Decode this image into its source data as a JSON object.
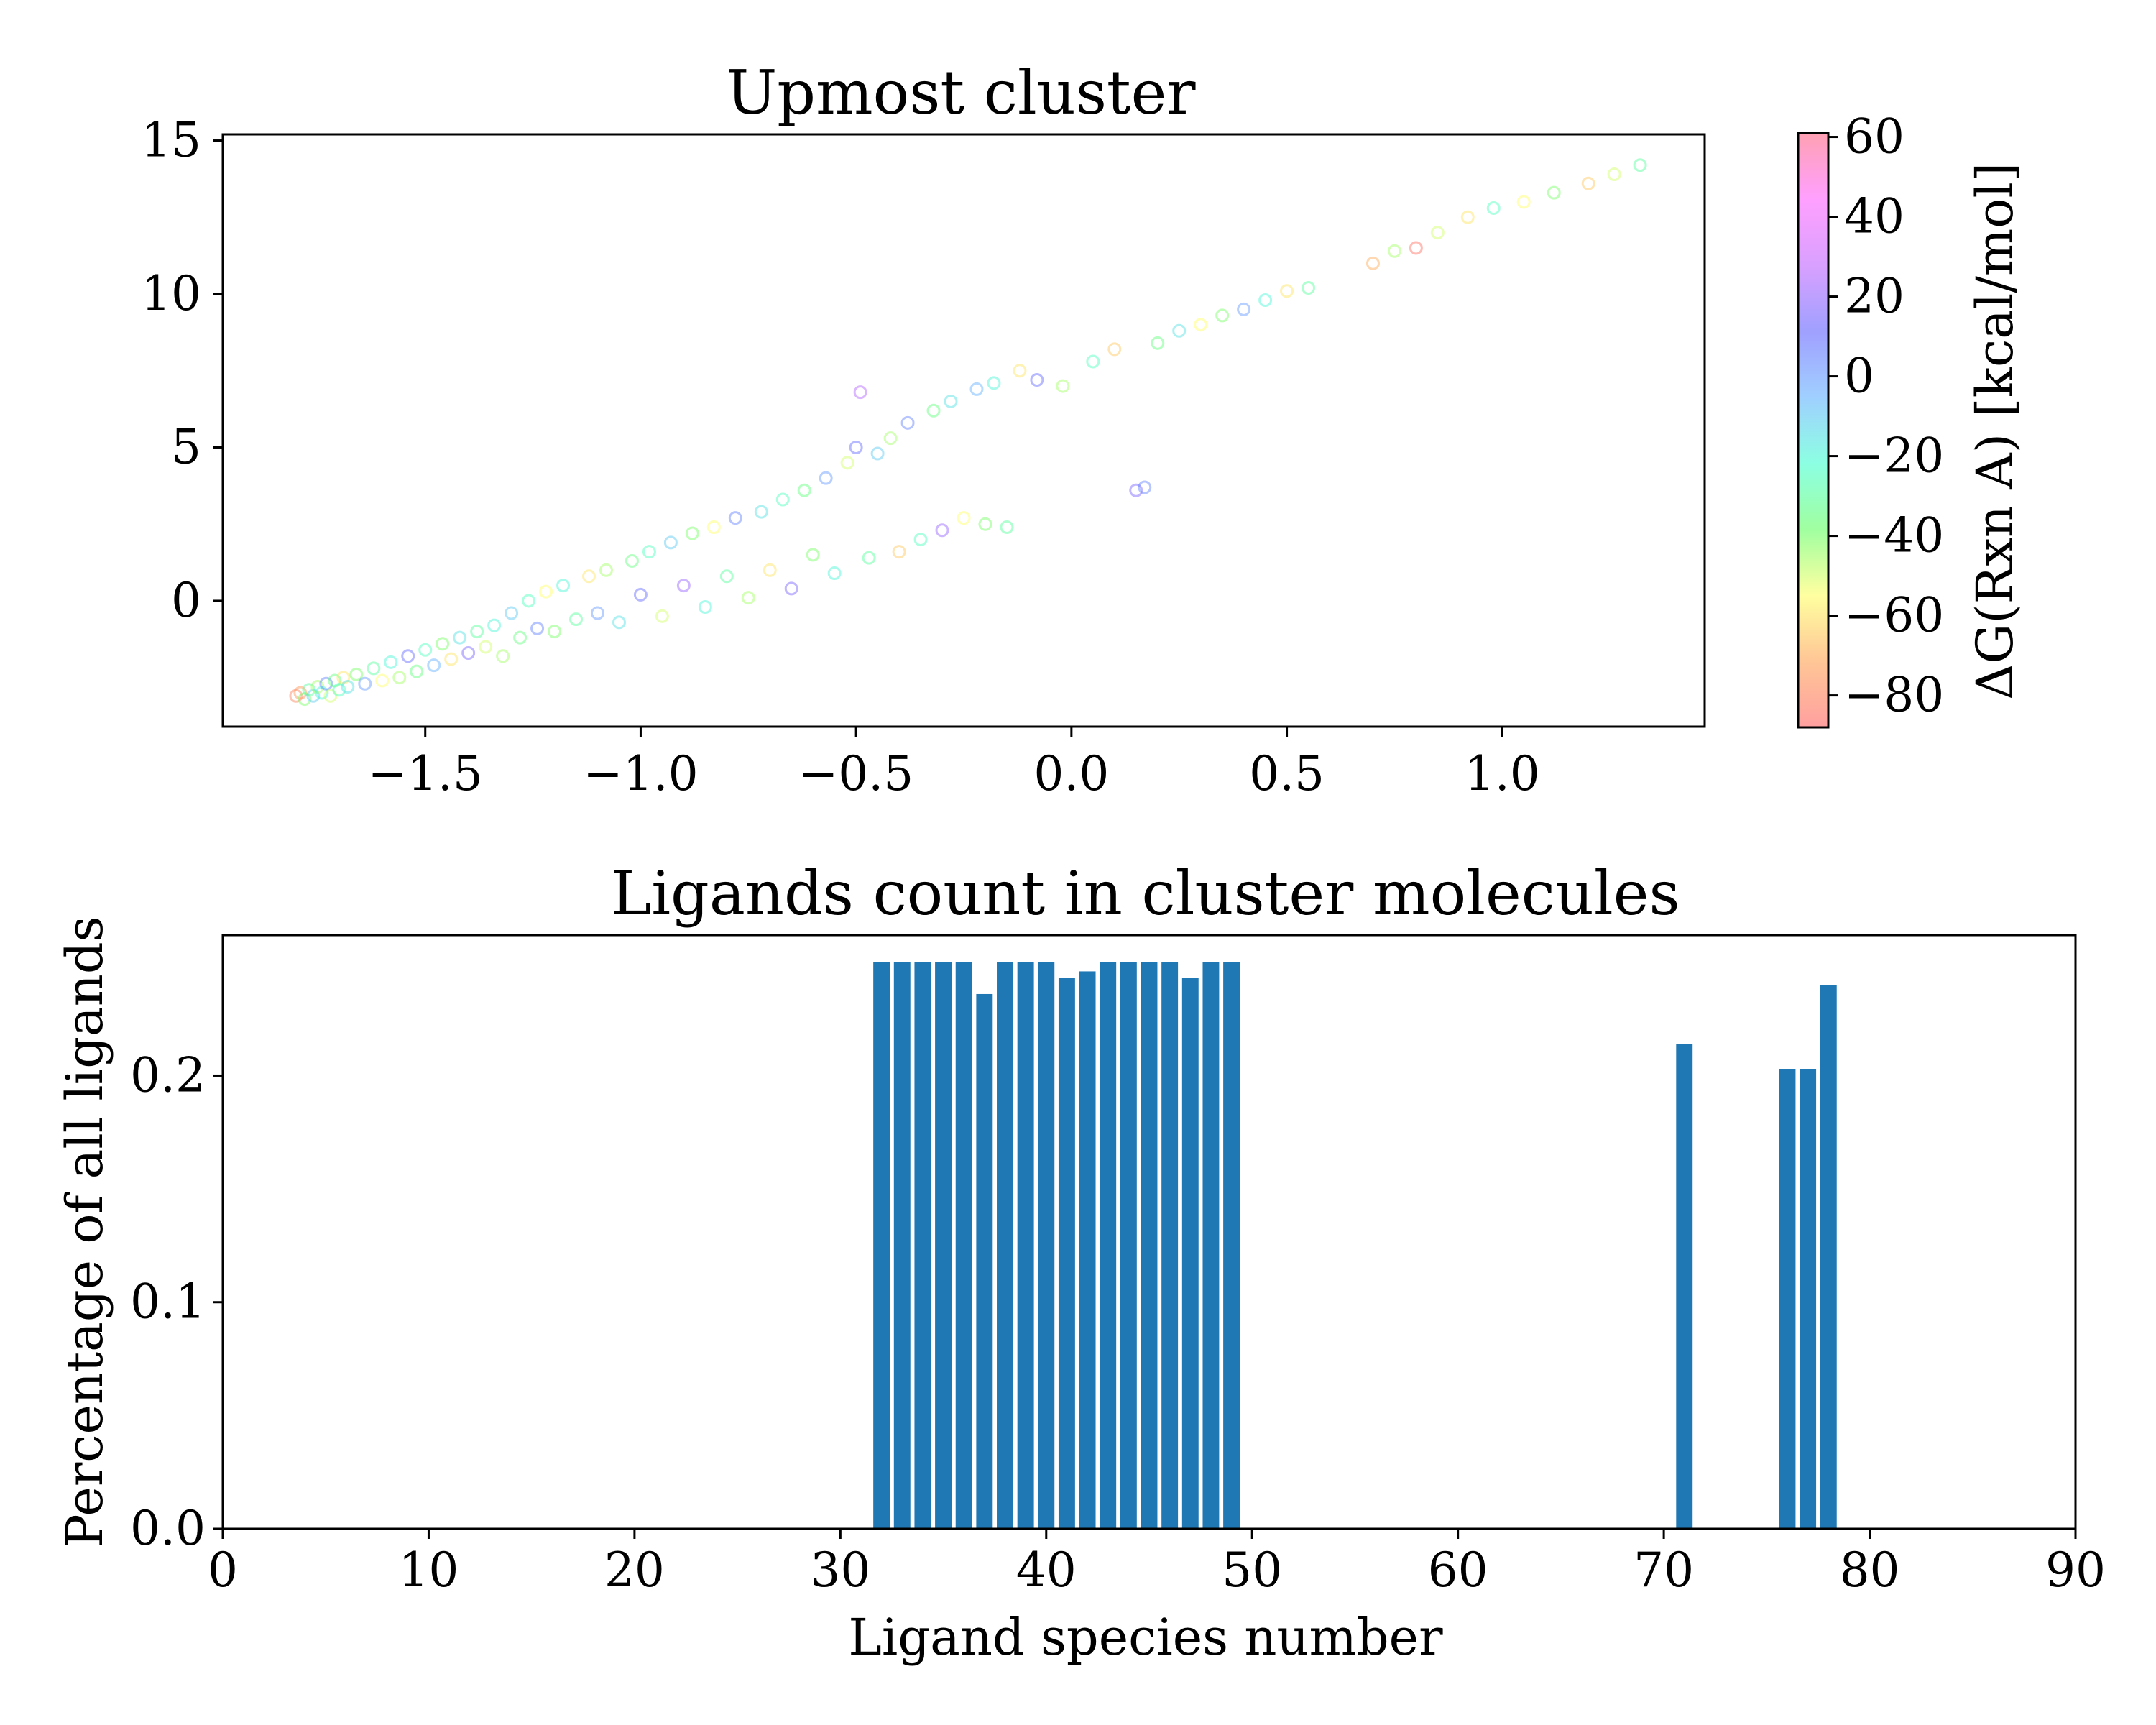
{
  "chart_data": [
    {
      "type": "scatter",
      "title": "Upmost cluster",
      "xlabel": "",
      "ylabel": "",
      "xlim": [
        -1.97,
        1.47
      ],
      "ylim": [
        -4.1,
        15.2
      ],
      "xticks": [
        -1.5,
        -1.0,
        -0.5,
        0.0,
        0.5,
        1.0
      ],
      "xtick_labels": [
        "−1.5",
        "−1.0",
        "−0.5",
        "0.0",
        "0.5",
        "1.0"
      ],
      "yticks": [
        0,
        5,
        10,
        15
      ],
      "ytick_labels": [
        "0",
        "5",
        "10",
        "15"
      ],
      "marker": "hollow circle, low opacity",
      "colorbar": {
        "label": "ΔG(Rxn A) [kcal/mol]",
        "range": [
          -88,
          61
        ],
        "ticks": [
          -80,
          -60,
          -40,
          -20,
          0,
          20,
          40,
          60
        ],
        "tick_labels": [
          "−80",
          "−60",
          "−40",
          "−20",
          "0",
          "20",
          "40",
          "60"
        ],
        "colormap": [
          "#ff6060",
          "#ffa050",
          "#ffff60",
          "#60ff60",
          "#40ffd0",
          "#60b0ff",
          "#6060ff",
          "#c060ff",
          "#ff60ff",
          "#ff6080"
        ]
      },
      "series": [
        {
          "points": [
            {
              "x": -1.8,
              "y": -3.1,
              "c": -80
            },
            {
              "x": -1.79,
              "y": -3.0,
              "c": -75
            },
            {
              "x": -1.78,
              "y": -3.2,
              "c": -40
            },
            {
              "x": -1.77,
              "y": -2.9,
              "c": -30
            },
            {
              "x": -1.76,
              "y": -3.1,
              "c": -10
            },
            {
              "x": -1.75,
              "y": -2.8,
              "c": -45
            },
            {
              "x": -1.74,
              "y": -3.0,
              "c": -20
            },
            {
              "x": -1.73,
              "y": -2.7,
              "c": 5
            },
            {
              "x": -1.72,
              "y": -3.1,
              "c": -50
            },
            {
              "x": -1.71,
              "y": -2.6,
              "c": -35
            },
            {
              "x": -1.7,
              "y": -2.9,
              "c": -25
            },
            {
              "x": -1.69,
              "y": -2.5,
              "c": -60
            },
            {
              "x": -1.68,
              "y": -2.8,
              "c": -15
            },
            {
              "x": -1.66,
              "y": -2.4,
              "c": -40
            },
            {
              "x": -1.64,
              "y": -2.7,
              "c": 0
            },
            {
              "x": -1.62,
              "y": -2.2,
              "c": -30
            },
            {
              "x": -1.6,
              "y": -2.6,
              "c": -55
            },
            {
              "x": -1.58,
              "y": -2.0,
              "c": -20
            },
            {
              "x": -1.56,
              "y": -2.5,
              "c": -45
            },
            {
              "x": -1.54,
              "y": -1.8,
              "c": 10
            },
            {
              "x": -1.52,
              "y": -2.3,
              "c": -35
            },
            {
              "x": -1.5,
              "y": -1.6,
              "c": -25
            },
            {
              "x": -1.48,
              "y": -2.1,
              "c": -5
            },
            {
              "x": -1.46,
              "y": -1.4,
              "c": -40
            },
            {
              "x": -1.44,
              "y": -1.9,
              "c": -60
            },
            {
              "x": -1.42,
              "y": -1.2,
              "c": -15
            },
            {
              "x": -1.4,
              "y": -1.7,
              "c": 15
            },
            {
              "x": -1.38,
              "y": -1.0,
              "c": -30
            },
            {
              "x": -1.36,
              "y": -1.5,
              "c": -50
            },
            {
              "x": -1.34,
              "y": -0.8,
              "c": -20
            },
            {
              "x": -1.32,
              "y": -1.8,
              "c": -45
            },
            {
              "x": -1.3,
              "y": -0.4,
              "c": -10
            },
            {
              "x": -1.28,
              "y": -1.2,
              "c": -35
            },
            {
              "x": -1.26,
              "y": 0.0,
              "c": -25
            },
            {
              "x": -1.24,
              "y": -0.9,
              "c": 5
            },
            {
              "x": -1.22,
              "y": 0.3,
              "c": -55
            },
            {
              "x": -1.2,
              "y": -1.0,
              "c": -40
            },
            {
              "x": -1.18,
              "y": 0.5,
              "c": -20
            },
            {
              "x": -1.15,
              "y": -0.6,
              "c": -30
            },
            {
              "x": -1.12,
              "y": 0.8,
              "c": -60
            },
            {
              "x": -1.1,
              "y": -0.4,
              "c": 0
            },
            {
              "x": -1.08,
              "y": 1.0,
              "c": -45
            },
            {
              "x": -1.05,
              "y": -0.7,
              "c": -15
            },
            {
              "x": -1.02,
              "y": 1.3,
              "c": -35
            },
            {
              "x": -1.0,
              "y": 0.2,
              "c": 10
            },
            {
              "x": -0.98,
              "y": 1.6,
              "c": -25
            },
            {
              "x": -0.95,
              "y": -0.5,
              "c": -50
            },
            {
              "x": -0.93,
              "y": 1.9,
              "c": -10
            },
            {
              "x": -0.9,
              "y": 0.5,
              "c": 20
            },
            {
              "x": -0.88,
              "y": 2.2,
              "c": -40
            },
            {
              "x": -0.85,
              "y": -0.2,
              "c": -20
            },
            {
              "x": -0.83,
              "y": 2.4,
              "c": -55
            },
            {
              "x": -0.8,
              "y": 0.8,
              "c": -30
            },
            {
              "x": -0.78,
              "y": 2.7,
              "c": 5
            },
            {
              "x": -0.75,
              "y": 0.1,
              "c": -45
            },
            {
              "x": -0.72,
              "y": 2.9,
              "c": -15
            },
            {
              "x": -0.7,
              "y": 1.0,
              "c": -60
            },
            {
              "x": -0.67,
              "y": 3.3,
              "c": -25
            },
            {
              "x": -0.65,
              "y": 0.4,
              "c": 15
            },
            {
              "x": -0.62,
              "y": 3.6,
              "c": -35
            },
            {
              "x": -0.6,
              "y": 1.5,
              "c": -40
            },
            {
              "x": -0.57,
              "y": 4.0,
              "c": 0
            },
            {
              "x": -0.55,
              "y": 0.9,
              "c": -20
            },
            {
              "x": -0.52,
              "y": 4.5,
              "c": -50
            },
            {
              "x": -0.5,
              "y": 5.0,
              "c": 10
            },
            {
              "x": -0.49,
              "y": 6.8,
              "c": 25
            },
            {
              "x": -0.47,
              "y": 1.4,
              "c": -30
            },
            {
              "x": -0.45,
              "y": 4.8,
              "c": -10
            },
            {
              "x": -0.42,
              "y": 5.3,
              "c": -45
            },
            {
              "x": -0.4,
              "y": 1.6,
              "c": -65
            },
            {
              "x": -0.38,
              "y": 5.8,
              "c": 5
            },
            {
              "x": -0.35,
              "y": 2.0,
              "c": -25
            },
            {
              "x": -0.32,
              "y": 6.2,
              "c": -35
            },
            {
              "x": -0.3,
              "y": 2.3,
              "c": 20
            },
            {
              "x": -0.28,
              "y": 6.5,
              "c": -15
            },
            {
              "x": -0.25,
              "y": 2.7,
              "c": -55
            },
            {
              "x": -0.22,
              "y": 6.9,
              "c": -5
            },
            {
              "x": -0.2,
              "y": 2.5,
              "c": -40
            },
            {
              "x": -0.18,
              "y": 7.1,
              "c": -20
            },
            {
              "x": -0.15,
              "y": 2.4,
              "c": -30
            },
            {
              "x": -0.12,
              "y": 7.5,
              "c": -60
            },
            {
              "x": -0.08,
              "y": 7.2,
              "c": 10
            },
            {
              "x": -0.02,
              "y": 7.0,
              "c": -45
            },
            {
              "x": 0.05,
              "y": 7.8,
              "c": -25
            },
            {
              "x": 0.1,
              "y": 8.2,
              "c": -65
            },
            {
              "x": 0.15,
              "y": 3.6,
              "c": 15
            },
            {
              "x": 0.17,
              "y": 3.7,
              "c": 5
            },
            {
              "x": 0.2,
              "y": 8.4,
              "c": -35
            },
            {
              "x": 0.25,
              "y": 8.8,
              "c": -15
            },
            {
              "x": 0.3,
              "y": 9.0,
              "c": -55
            },
            {
              "x": 0.35,
              "y": 9.3,
              "c": -40
            },
            {
              "x": 0.4,
              "y": 9.5,
              "c": 0
            },
            {
              "x": 0.45,
              "y": 9.8,
              "c": -20
            },
            {
              "x": 0.5,
              "y": 10.1,
              "c": -60
            },
            {
              "x": 0.55,
              "y": 10.2,
              "c": -30
            },
            {
              "x": 0.7,
              "y": 11.0,
              "c": -70
            },
            {
              "x": 0.75,
              "y": 11.4,
              "c": -45
            },
            {
              "x": 0.8,
              "y": 11.5,
              "c": -85
            },
            {
              "x": 0.85,
              "y": 12.0,
              "c": -50
            },
            {
              "x": 0.92,
              "y": 12.5,
              "c": -60
            },
            {
              "x": 0.98,
              "y": 12.8,
              "c": -25
            },
            {
              "x": 1.05,
              "y": 13.0,
              "c": -55
            },
            {
              "x": 1.12,
              "y": 13.3,
              "c": -40
            },
            {
              "x": 1.2,
              "y": 13.6,
              "c": -65
            },
            {
              "x": 1.26,
              "y": 13.9,
              "c": -50
            },
            {
              "x": 1.32,
              "y": 14.2,
              "c": -30
            }
          ]
        }
      ]
    },
    {
      "type": "bar",
      "title": "Ligands count in cluster molecules",
      "xlabel": "Ligand species number",
      "ylabel": "Percentage of all ligands",
      "xlim": [
        0,
        90
      ],
      "ylim": [
        0,
        0.262
      ],
      "xticks": [
        0,
        10,
        20,
        30,
        40,
        50,
        60,
        70,
        80,
        90
      ],
      "xtick_labels": [
        "0",
        "10",
        "20",
        "30",
        "40",
        "50",
        "60",
        "70",
        "80",
        "90"
      ],
      "yticks": [
        0.0,
        0.1,
        0.2
      ],
      "ytick_labels": [
        "0.0",
        "0.1",
        "0.2"
      ],
      "bar_color": "#1f77b4",
      "categories": [
        32,
        33,
        34,
        35,
        36,
        37,
        38,
        39,
        40,
        41,
        42,
        43,
        44,
        45,
        46,
        47,
        48,
        49,
        71,
        76,
        77,
        78
      ],
      "values": [
        0.25,
        0.25,
        0.25,
        0.25,
        0.25,
        0.236,
        0.25,
        0.25,
        0.25,
        0.243,
        0.246,
        0.25,
        0.25,
        0.25,
        0.25,
        0.243,
        0.25,
        0.25,
        0.214,
        0.203,
        0.203,
        0.24
      ]
    }
  ]
}
